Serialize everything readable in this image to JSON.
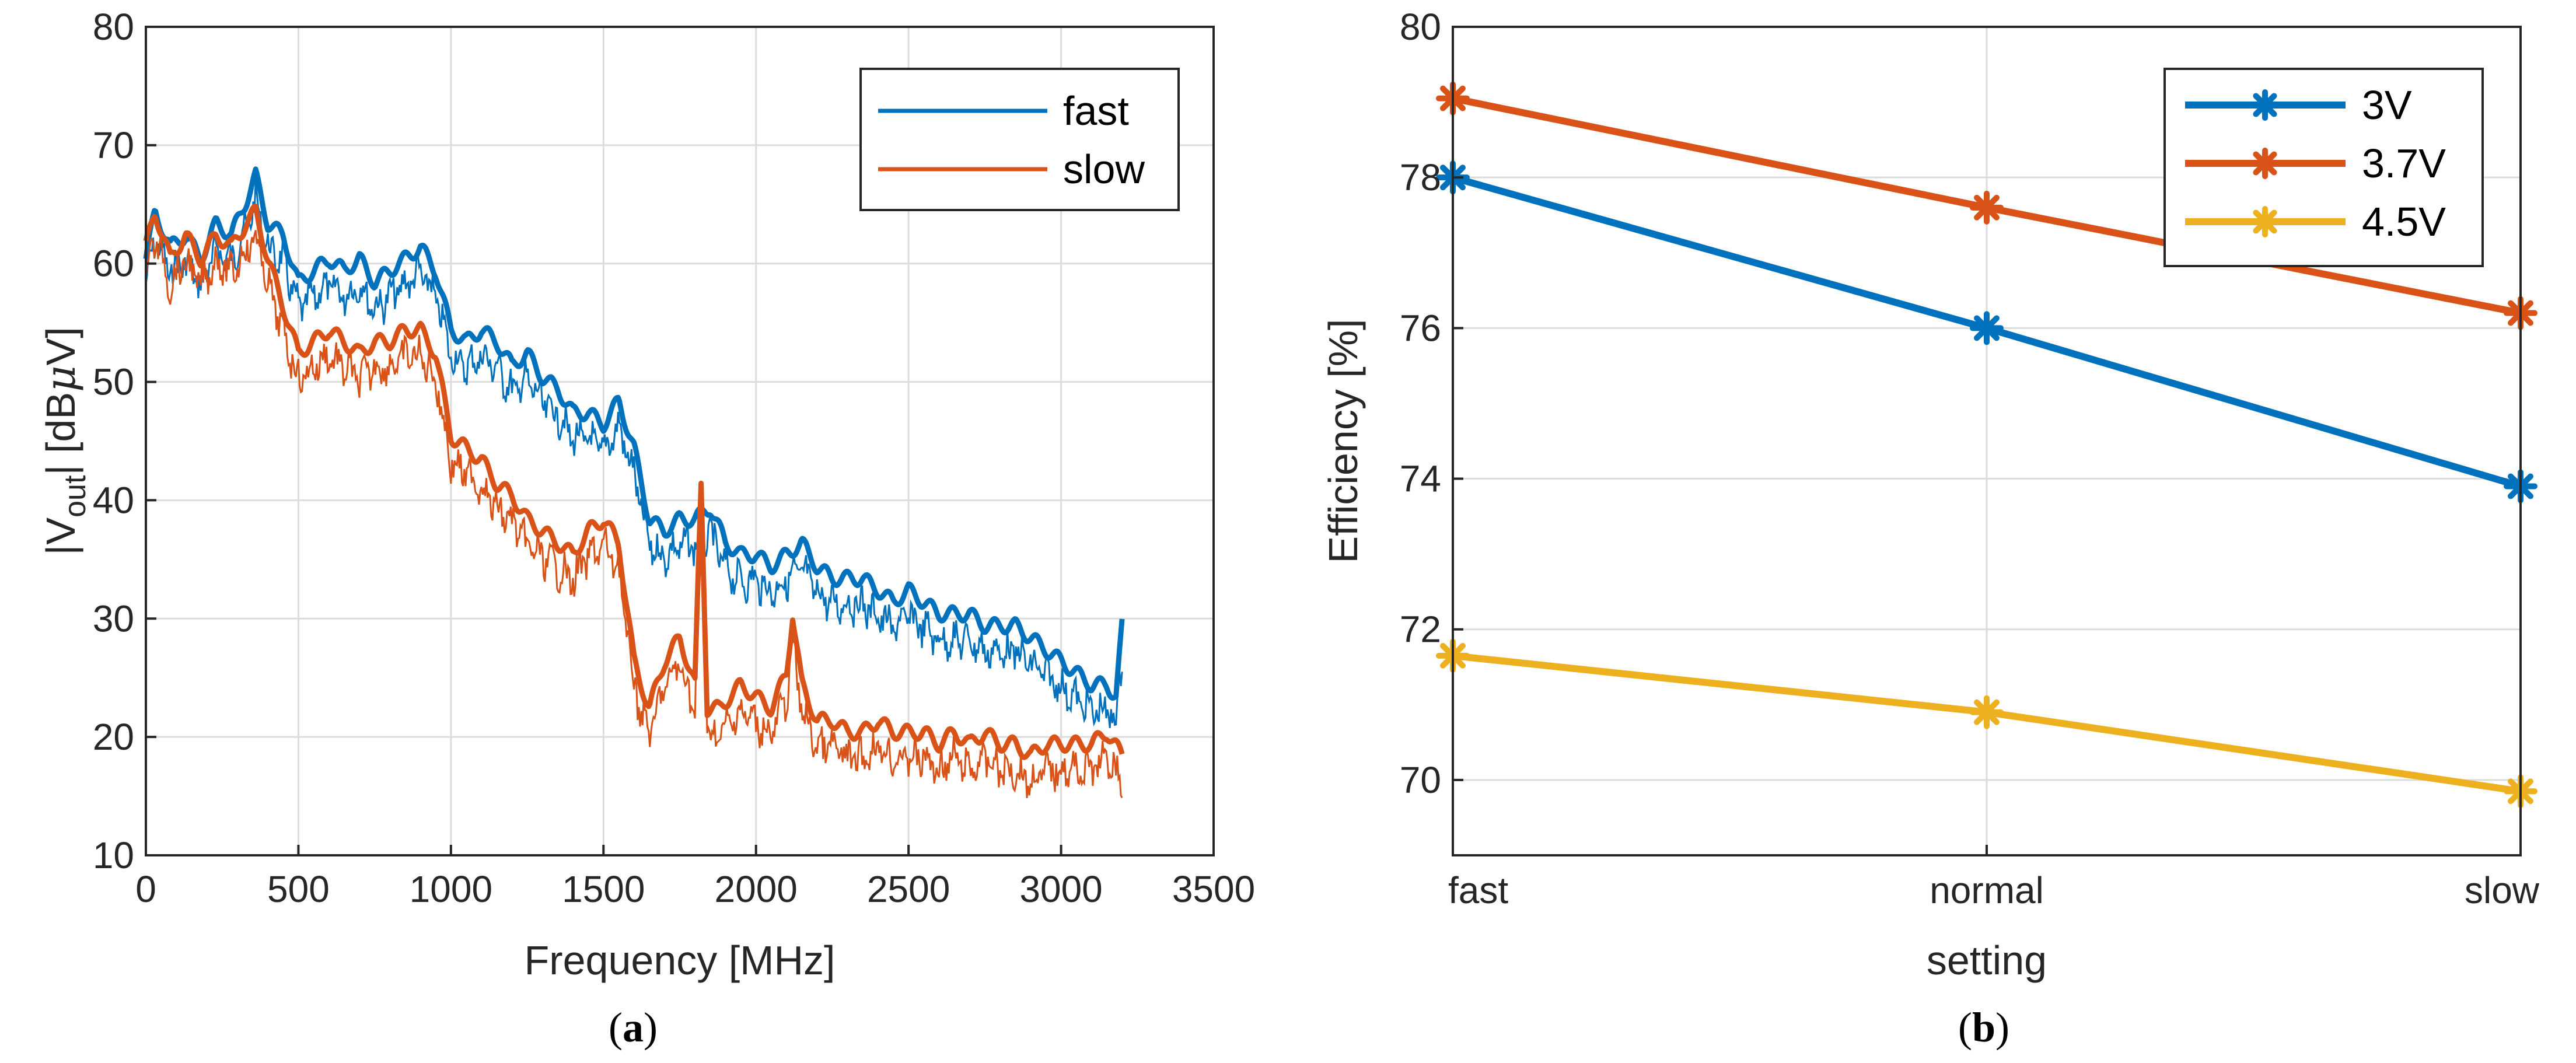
{
  "chart_data": [
    {
      "type": "line",
      "panel": "a",
      "caption_letter": "a",
      "xlabel": "Frequency [MHz]",
      "ylabel_main": "|V",
      "ylabel_sub": "out",
      "ylabel_rest": "| [dB",
      "ylabel_mu": "μ",
      "ylabel_end": "V]",
      "xlim": [
        0,
        3500
      ],
      "ylim": [
        10,
        80
      ],
      "xticks": [
        0,
        500,
        1000,
        1500,
        2000,
        2500,
        3000,
        3500
      ],
      "yticks": [
        10,
        20,
        30,
        40,
        50,
        60,
        70,
        80
      ],
      "grid": true,
      "legend_position": "top-right",
      "series": [
        {
          "name": "fast",
          "color": "#0072bd",
          "x": [
            0,
            30,
            80,
            130,
            180,
            230,
            280,
            330,
            360,
            400,
            450,
            500,
            550,
            600,
            650,
            700,
            750,
            800,
            850,
            900,
            950,
            1000,
            1050,
            1100,
            1150,
            1200,
            1250,
            1300,
            1350,
            1400,
            1450,
            1500,
            1550,
            1600,
            1650,
            1700,
            1750,
            1800,
            1850,
            1900,
            1950,
            2000,
            2050,
            2100,
            2150,
            2200,
            2250,
            2300,
            2350,
            2400,
            2450,
            2500,
            2550,
            2600,
            2650,
            2700,
            2750,
            2800,
            2850,
            2900,
            2950,
            3000,
            3050,
            3100,
            3150,
            3180,
            3200
          ],
          "values": [
            60,
            64,
            61,
            62,
            60,
            63,
            62,
            65,
            67,
            63,
            62,
            58,
            59,
            60,
            59,
            60,
            58,
            59,
            60,
            61,
            59,
            54,
            53,
            54,
            53,
            51,
            52,
            50,
            49,
            47,
            47,
            46,
            48,
            44,
            38,
            37,
            38,
            38,
            39,
            36,
            35,
            35,
            34,
            35,
            36,
            34,
            33,
            33,
            33,
            32,
            31,
            32,
            31,
            30,
            30,
            30,
            29,
            29,
            29,
            28,
            27,
            26,
            25,
            24,
            24,
            23,
            29
          ]
        },
        {
          "name": "slow",
          "color": "#d95319",
          "x": [
            0,
            30,
            80,
            130,
            180,
            230,
            280,
            330,
            360,
            400,
            450,
            500,
            550,
            600,
            650,
            700,
            750,
            800,
            850,
            900,
            950,
            1000,
            1050,
            1100,
            1150,
            1200,
            1250,
            1300,
            1350,
            1400,
            1450,
            1500,
            1550,
            1600,
            1650,
            1700,
            1750,
            1800,
            1820,
            1840,
            1880,
            1950,
            2000,
            2050,
            2100,
            2120,
            2150,
            2200,
            2250,
            2300,
            2350,
            2400,
            2450,
            2500,
            2550,
            2600,
            2650,
            2700,
            2750,
            2800,
            2850,
            2900,
            2950,
            3000,
            3050,
            3100,
            3150,
            3200
          ],
          "values": [
            61,
            64,
            60,
            62,
            60,
            62,
            61,
            63,
            64,
            60,
            56,
            52,
            53,
            54,
            53,
            52,
            53,
            53,
            54,
            54,
            52,
            45,
            44,
            43,
            41,
            40,
            38,
            37,
            36,
            35,
            37,
            38,
            36,
            26,
            22,
            26,
            28,
            24,
            41,
            22,
            22,
            24,
            23,
            22,
            25,
            30,
            24,
            21,
            21,
            20,
            20,
            21,
            20,
            20,
            20,
            19,
            20,
            19,
            20,
            19,
            19,
            18,
            19,
            19,
            19,
            19,
            20,
            18
          ]
        }
      ]
    },
    {
      "type": "line",
      "panel": "b",
      "caption_letter": "b",
      "xlabel": "setting",
      "ylabel": "Efficiency [%]",
      "categories": [
        "fast",
        "normal",
        "slow"
      ],
      "ylim": [
        69,
        80
      ],
      "yticks": [
        70,
        72,
        74,
        76,
        78,
        80
      ],
      "grid": true,
      "legend_position": "top-right",
      "series": [
        {
          "name": "3V",
          "color": "#0072bd",
          "values": [
            78.0,
            76.0,
            73.9
          ]
        },
        {
          "name": "3.7V",
          "color": "#d95319",
          "values": [
            79.05,
            77.6,
            76.2
          ]
        },
        {
          "name": "4.5V",
          "color": "#edb120",
          "values": [
            71.65,
            70.9,
            69.85
          ]
        }
      ]
    }
  ]
}
